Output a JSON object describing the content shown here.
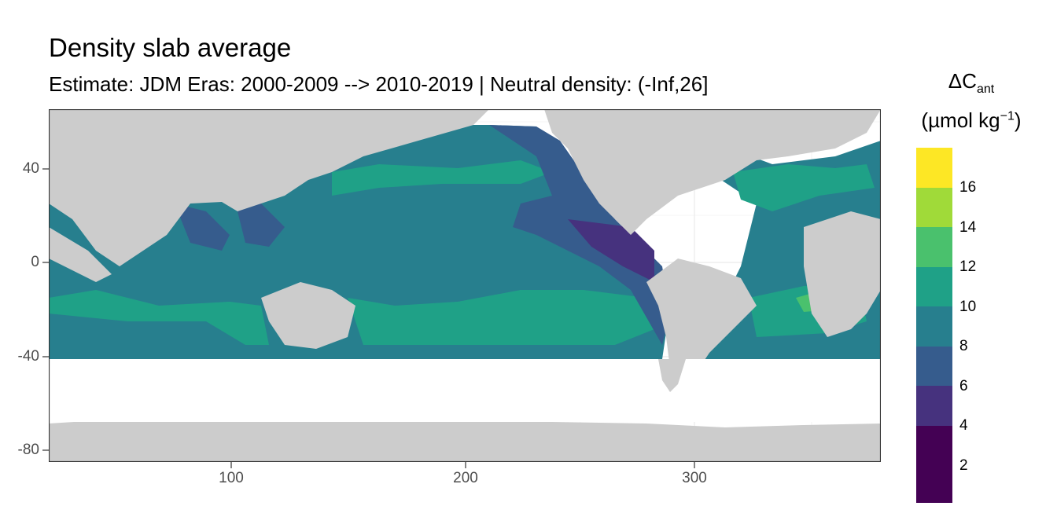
{
  "title": "Density slab average",
  "subtitle": "Estimate: JDM Eras: 2000-2009 --> 2010-2019 | Neutral density: (-Inf,26]",
  "y_ticks": [
    "40",
    "0",
    "-40",
    "-80"
  ],
  "x_ticks": [
    "100",
    "200",
    "300"
  ],
  "legend": {
    "title_delta": "ΔC",
    "title_sub": "ant",
    "unit_open": "(µmol kg",
    "unit_sup": "−1",
    "unit_close": ")",
    "labels": [
      "16",
      "14",
      "12",
      "10",
      "8",
      "6",
      "4",
      "2"
    ],
    "colors": [
      "#fde725",
      "#a0da39",
      "#4ac16d",
      "#1fa187",
      "#277f8e",
      "#365c8d",
      "#46327e",
      "#440154"
    ]
  },
  "colors": {
    "land": "#cccccc",
    "no_data": "#ffffff",
    "panel_border": "#333333",
    "grid": "#ebebeb"
  }
}
